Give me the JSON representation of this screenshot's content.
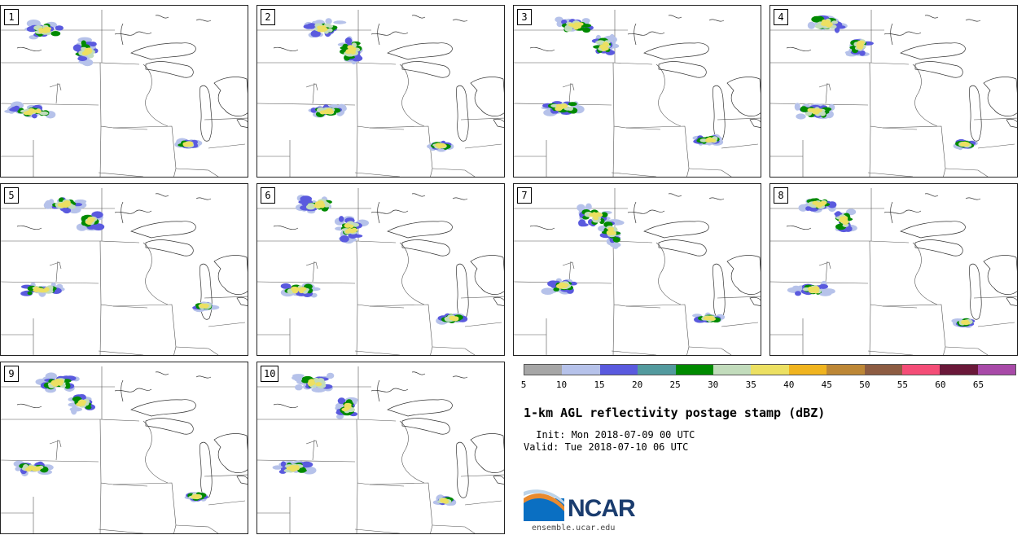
{
  "title": "1-km AGL reflectivity postage stamp (dBZ)",
  "init_line": " Init: Mon 2018-07-09 00 UTC",
  "valid_line": "Valid: Tue 2018-07-10 06 UTC",
  "logo": {
    "name": "NCAR",
    "url": "ensemble.ucar.edu"
  },
  "colorbar": {
    "colors": [
      "#a6a6a6",
      "#b6c2ea",
      "#5a5ade",
      "#539a9e",
      "#008a00",
      "#c2dcbc",
      "#ece062",
      "#f0b41f",
      "#bd8736",
      "#8d5c42",
      "#f44d77",
      "#6a1839",
      "#a84aa8"
    ],
    "ticks": [
      "5",
      "10",
      "15",
      "20",
      "25",
      "30",
      "35",
      "40",
      "45",
      "50",
      "55",
      "60",
      "65"
    ]
  },
  "members": [
    {
      "label": "1"
    },
    {
      "label": "2"
    },
    {
      "label": "3"
    },
    {
      "label": "4"
    },
    {
      "label": "5"
    },
    {
      "label": "6"
    },
    {
      "label": "7"
    },
    {
      "label": "8"
    },
    {
      "label": "9"
    },
    {
      "label": "10"
    }
  ]
}
